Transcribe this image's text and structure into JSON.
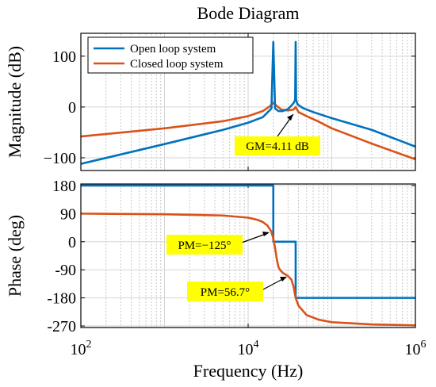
{
  "chart_data": {
    "type": "line",
    "title": "Bode Diagram",
    "xlabel": "Frequency  (Hz)",
    "x_scale": "log",
    "xlim": [
      100,
      1000000
    ],
    "x_ticks": [
      100,
      10000,
      1000000
    ],
    "x_tick_base": "10",
    "x_tick_exponents": [
      "2",
      "4",
      "6"
    ],
    "grid": true,
    "line_colors": {
      "open": "#0072BD",
      "closed": "#D95319"
    },
    "annotation_color": "#FFFF00",
    "subplots": [
      {
        "name": "magnitude",
        "ylabel": "Magnitude (dB)",
        "ylim": [
          -125,
          145
        ],
        "y_ticks": [
          100,
          0,
          -100
        ],
        "y_tick_labels": [
          "100",
          "0",
          "−100"
        ],
        "legend_position": "top-left",
        "series": [
          {
            "name": "Open loop system",
            "color": "#0072BD",
            "x": [
              100,
              1000,
              5000,
              10000,
              15000,
              19000,
              20000,
              21000,
              23000,
              26000,
              30000,
              33000,
              35000,
              36500,
              37000,
              37500,
              39000,
              45000,
              60000,
              100000,
              300000,
              1000000
            ],
            "y": [
              -112,
              -73,
              -45,
              -31,
              -20,
              -3,
              128,
              -3,
              -8,
              -8,
              -4,
              3,
              8,
              14,
              128,
              14,
              5,
              -2,
              -10,
              -22,
              -45,
              -78
            ]
          },
          {
            "name": "Closed loop system",
            "color": "#D95319",
            "x": [
              100,
              1000,
              5000,
              10000,
              15000,
              18000,
              20000,
              22000,
              25000,
              30000,
              35000,
              37000,
              40000,
              50000,
              70000,
              100000,
              300000,
              1000000
            ],
            "y": [
              -58,
              -42,
              -28,
              -18,
              -8,
              1,
              8,
              2,
              -5,
              -7,
              -5,
              0,
              -10,
              -18,
              -29,
              -42,
              -72,
              -103
            ]
          }
        ],
        "annotations": [
          {
            "text": "GM=4.11 dB",
            "x": 37000,
            "y": -2
          }
        ]
      },
      {
        "name": "phase",
        "ylabel": "Phase (deg)",
        "ylim": [
          -275,
          185
        ],
        "y_ticks": [
          180,
          90,
          0,
          -90,
          -180,
          -270
        ],
        "y_tick_labels": [
          "180",
          "90",
          "0",
          "-90",
          "-180",
          "-270"
        ],
        "series": [
          {
            "name": "Open loop system",
            "color": "#0072BD",
            "x": [
              100,
              20000,
              20000,
              37000,
              37000,
              1000000
            ],
            "y": [
              180,
              180,
              0,
              0,
              -180,
              -180
            ]
          },
          {
            "name": "Closed loop system",
            "color": "#D95319",
            "x": [
              100,
              1000,
              5000,
              10000,
              13000,
              15000,
              17000,
              19000,
              20000,
              21000,
              22000,
              23000,
              24000,
              26000,
              30000,
              33000,
              35000,
              37000,
              40000,
              50000,
              70000,
              100000,
              300000,
              1000000
            ],
            "y": [
              90,
              88,
              84,
              77,
              70,
              63,
              52,
              32,
              10,
              -20,
              -55,
              -80,
              -90,
              -100,
              -110,
              -122,
              -145,
              -180,
              -205,
              -235,
              -250,
              -258,
              -265,
              -268
            ]
          }
        ],
        "annotations": [
          {
            "text": "PM=−125°",
            "x": 20000,
            "y": 10
          },
          {
            "text": "PM=56.7°",
            "x": 30000,
            "y": -118
          }
        ]
      }
    ]
  }
}
